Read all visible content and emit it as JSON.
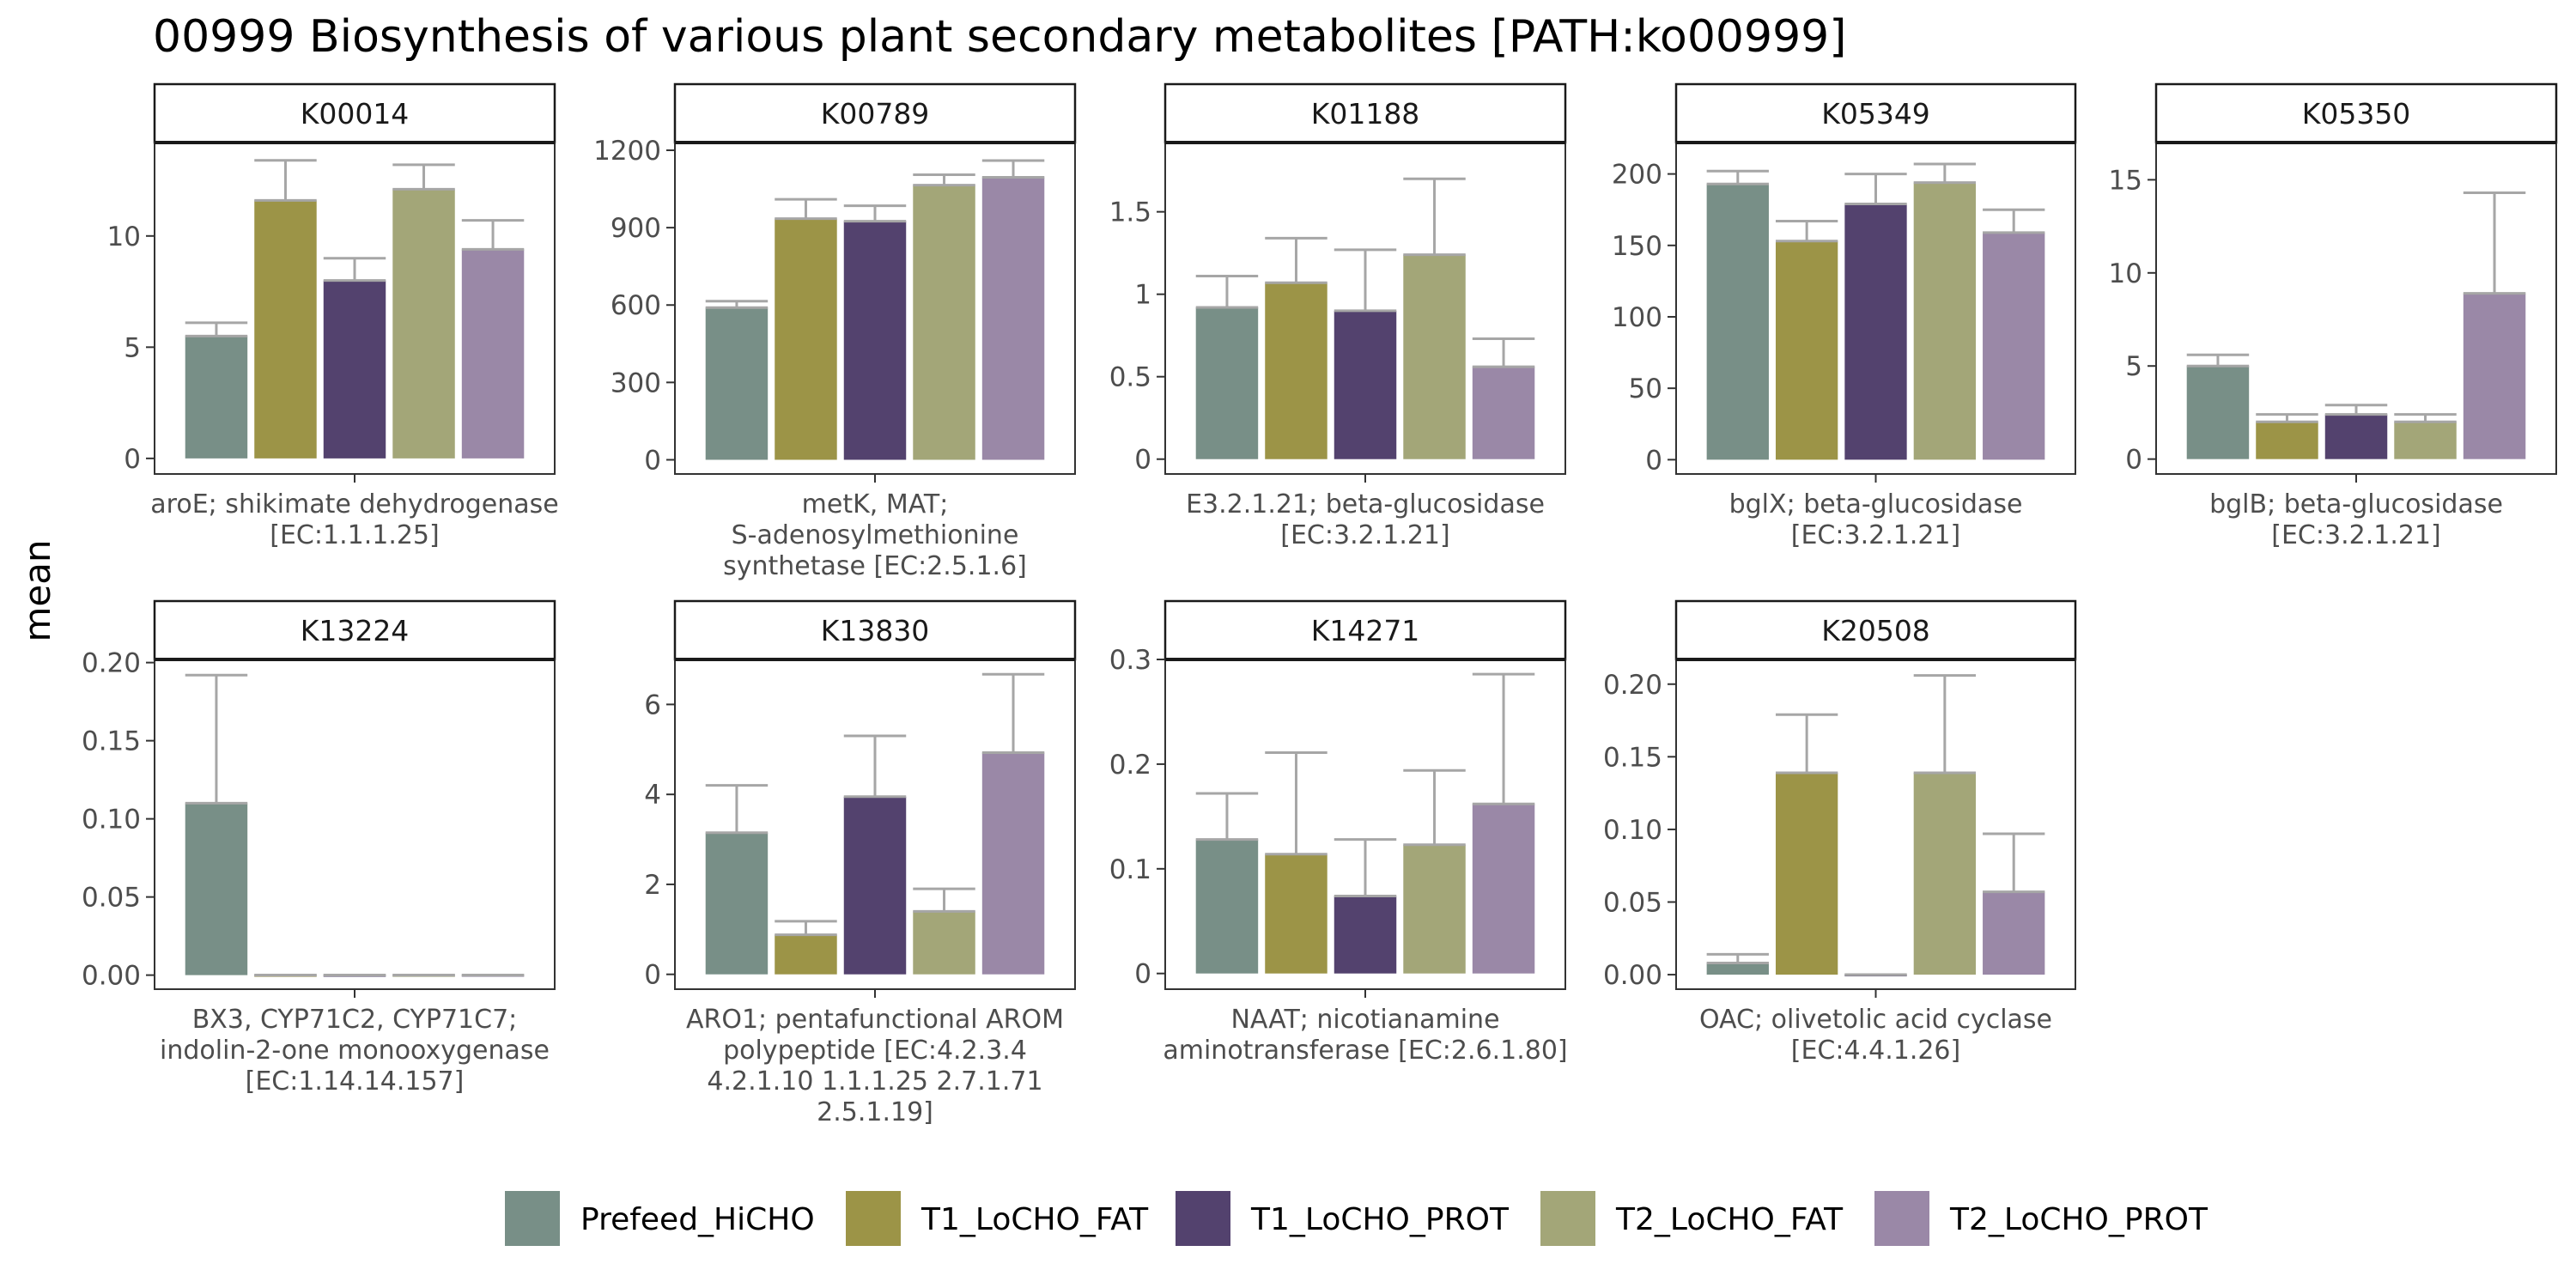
{
  "chart_data": {
    "type": "bar",
    "title": "00999 Biosynthesis of various plant secondary metabolites [PATH:ko00999]",
    "ylabel": "mean",
    "legend_position": "bottom",
    "series_names": [
      "Prefeed_HiCHO",
      "T1_LoCHO_FAT",
      "T1_LoCHO_PROT",
      "T2_LoCHO_FAT",
      "T2_LoCHO_PROT"
    ],
    "colors": [
      "#788f87",
      "#9c9447",
      "#53426e",
      "#a3a678",
      "#9a88a7"
    ],
    "error_bar_color": "#a6a6a6",
    "panels": [
      {
        "id": "K00014",
        "xlabel": [
          "aroE; shikimate dehydrogenase",
          "[EC:1.1.1.25]"
        ],
        "yticks": [
          0,
          5,
          10
        ],
        "ylim": [
          -0.7,
          14.2
        ],
        "values": [
          5.5,
          11.6,
          8.0,
          12.1,
          9.4
        ],
        "errors": [
          0.6,
          1.8,
          1.0,
          1.1,
          1.3
        ]
      },
      {
        "id": "K00789",
        "xlabel": [
          "metK, MAT;",
          "S-adenosylmethionine",
          "synthetase [EC:2.5.1.6]"
        ],
        "yticks": [
          0,
          300,
          600,
          900,
          1200
        ],
        "ylim": [
          -55,
          1230
        ],
        "values": [
          590,
          935,
          925,
          1065,
          1095
        ],
        "errors": [
          25,
          75,
          60,
          40,
          65
        ]
      },
      {
        "id": "K01188",
        "xlabel": [
          "E3.2.1.21; beta-glucosidase",
          "[EC:3.2.1.21]"
        ],
        "yticks": [
          0.0,
          0.5,
          1.0,
          1.5
        ],
        "ylim": [
          -0.09,
          1.92
        ],
        "values": [
          0.92,
          1.07,
          0.9,
          1.24,
          0.56
        ],
        "errors": [
          0.19,
          0.27,
          0.37,
          0.46,
          0.17
        ]
      },
      {
        "id": "K05349",
        "xlabel": [
          "bglX; beta-glucosidase",
          "[EC:3.2.1.21]"
        ],
        "yticks": [
          0,
          50,
          100,
          150,
          200
        ],
        "ylim": [
          -10,
          222
        ],
        "values": [
          193,
          153,
          179,
          194,
          159
        ],
        "errors": [
          9,
          14,
          21,
          13,
          16
        ]
      },
      {
        "id": "K05350",
        "xlabel": [
          "bglB; beta-glucosidase",
          "[EC:3.2.1.21]"
        ],
        "yticks": [
          0,
          5,
          10,
          15
        ],
        "ylim": [
          -0.8,
          17.0
        ],
        "values": [
          5.0,
          2.0,
          2.4,
          2.0,
          8.9
        ],
        "errors": [
          0.6,
          0.4,
          0.5,
          0.4,
          5.4
        ]
      },
      {
        "id": "K13224",
        "xlabel": [
          "BX3, CYP71C2, CYP71C7;",
          "indolin-2-one monooxygenase",
          "[EC:1.14.14.157]"
        ],
        "yticks": [
          0.0,
          0.05,
          0.1,
          0.15,
          0.2
        ],
        "yticklabels": [
          "0.00",
          "0.05",
          "0.10",
          "0.15",
          "0.20"
        ],
        "ylim": [
          -0.009,
          0.202
        ],
        "values": [
          0.11,
          0,
          0,
          0,
          0
        ],
        "errors": [
          0.082,
          0,
          0,
          0,
          0
        ]
      },
      {
        "id": "K13830",
        "xlabel": [
          "ARO1; pentafunctional AROM",
          "polypeptide [EC:4.2.3.4",
          "4.2.1.10 1.1.1.25 2.7.1.71",
          "2.5.1.19]"
        ],
        "yticks": [
          0,
          2,
          4,
          6
        ],
        "ylim": [
          -0.33,
          7.0
        ],
        "values": [
          3.15,
          0.88,
          3.95,
          1.4,
          4.93
        ],
        "errors": [
          1.05,
          0.3,
          1.35,
          0.5,
          1.74
        ]
      },
      {
        "id": "K14271",
        "xlabel": [
          "NAAT; nicotianamine",
          "aminotransferase [EC:2.6.1.80]"
        ],
        "yticks": [
          0.0,
          0.1,
          0.2,
          0.3
        ],
        "ylim": [
          -0.015,
          0.3
        ],
        "values": [
          0.128,
          0.114,
          0.074,
          0.123,
          0.162
        ],
        "errors": [
          0.044,
          0.097,
          0.054,
          0.071,
          0.124
        ]
      },
      {
        "id": "K20508",
        "xlabel": [
          "OAC; olivetolic acid cyclase",
          "[EC:4.4.1.26]"
        ],
        "yticks": [
          0.0,
          0.05,
          0.1,
          0.15,
          0.2
        ],
        "yticklabels": [
          "0.00",
          "0.05",
          "0.10",
          "0.15",
          "0.20"
        ],
        "ylim": [
          -0.01,
          0.217
        ],
        "values": [
          0.008,
          0.139,
          0.0,
          0.139,
          0.057
        ],
        "errors": [
          0.006,
          0.04,
          0,
          0.067,
          0.04
        ]
      }
    ]
  }
}
